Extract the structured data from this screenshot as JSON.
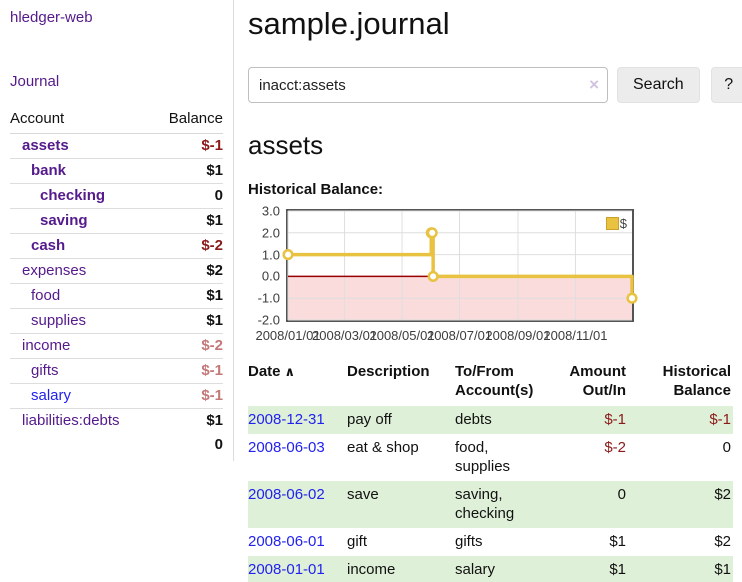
{
  "brand": "hledger-web",
  "nav": {
    "journal_label": "Journal"
  },
  "sidebar": {
    "header": {
      "account": "Account",
      "balance": "Balance"
    },
    "rows": [
      {
        "name": "assets",
        "depth": 1,
        "bold": true,
        "balance": "$-1",
        "neg": true,
        "unvisited": false
      },
      {
        "name": "bank",
        "depth": 2,
        "bold": true,
        "balance": "$1",
        "neg": false,
        "unvisited": false
      },
      {
        "name": "checking",
        "depth": 3,
        "bold": true,
        "balance": "0",
        "neg": false,
        "unvisited": false
      },
      {
        "name": "saving",
        "depth": 3,
        "bold": true,
        "balance": "$1",
        "neg": false,
        "unvisited": false
      },
      {
        "name": "cash",
        "depth": 2,
        "bold": true,
        "balance": "$-2",
        "neg": true,
        "unvisited": false
      },
      {
        "name": "expenses",
        "depth": 1,
        "bold": false,
        "balance": "$2",
        "neg": false,
        "unvisited": false
      },
      {
        "name": "food",
        "depth": 2,
        "bold": false,
        "balance": "$1",
        "neg": false,
        "unvisited": false
      },
      {
        "name": "supplies",
        "depth": 2,
        "bold": false,
        "balance": "$1",
        "neg": false,
        "unvisited": false
      },
      {
        "name": "income",
        "depth": 1,
        "bold": false,
        "balance": "$-2",
        "neg": true,
        "unvisited": false
      },
      {
        "name": "gifts",
        "depth": 2,
        "bold": false,
        "balance": "$-1",
        "neg": true,
        "unvisited": false
      },
      {
        "name": "salary",
        "depth": 2,
        "bold": false,
        "balance": "$-1",
        "neg": true,
        "unvisited": true
      },
      {
        "name": "liabilities:debts",
        "depth": 1,
        "bold": false,
        "balance": "$1",
        "neg": false,
        "unvisited": false
      }
    ],
    "total": "0"
  },
  "header": {
    "title": "sample.journal"
  },
  "search": {
    "value": "inacct:assets",
    "button_label": "Search",
    "help_label": "?"
  },
  "icons": {
    "clear": "×",
    "sort_asc": "∧"
  },
  "account_page": {
    "title": "assets",
    "chart_label": "Historical Balance:"
  },
  "chart_data": {
    "type": "line",
    "title": "Historical Balance",
    "style": "step",
    "series": [
      {
        "name": "$",
        "color": "#e8c240",
        "points": [
          {
            "date": "2008-01-01",
            "day": 0,
            "value": 1
          },
          {
            "date": "2008-06-01",
            "day": 152,
            "value": 2
          },
          {
            "date": "2008-06-02",
            "day": 153,
            "value": 2
          },
          {
            "date": "2008-06-03",
            "day": 154,
            "value": 0
          },
          {
            "date": "2008-12-31",
            "day": 365,
            "value": -1
          }
        ]
      }
    ],
    "x_ticks": [
      {
        "label": "2008/01/01",
        "day": 0
      },
      {
        "label": "2008/03/01",
        "day": 60
      },
      {
        "label": "2008/05/01",
        "day": 121
      },
      {
        "label": "2008/07/01",
        "day": 182
      },
      {
        "label": "2008/09/01",
        "day": 244
      },
      {
        "label": "2008/11/01",
        "day": 305
      }
    ],
    "y_ticks": [
      "3.0",
      "2.0",
      "1.0",
      "0.0",
      "-1.0",
      "-2.0"
    ],
    "ylim": [
      -2,
      3
    ],
    "xlim_days": [
      0,
      365
    ],
    "grid": true,
    "legend": {
      "label": "$",
      "position": "top-right"
    },
    "negative_region_color": "#fbdcdc",
    "zero_line_color": "#990000"
  },
  "register": {
    "columns": [
      {
        "label": "Date",
        "sorted_asc": true
      },
      {
        "label": "Description"
      },
      {
        "label": "To/From Account(s)"
      },
      {
        "label": "Amount Out/In",
        "align": "right"
      },
      {
        "label": "Historical Balance",
        "align": "right"
      }
    ],
    "rows": [
      {
        "date": "2008-12-31",
        "description": "pay off",
        "accounts": "debts",
        "amount": "$-1",
        "amount_neg": true,
        "balance": "$-1",
        "balance_neg": true,
        "green": true
      },
      {
        "date": "2008-06-03",
        "description": "eat & shop",
        "accounts": "food, supplies",
        "amount": "$-2",
        "amount_neg": true,
        "balance": "0",
        "balance_neg": false,
        "green": false
      },
      {
        "date": "2008-06-02",
        "description": "save",
        "accounts": "saving, checking",
        "amount": "0",
        "amount_neg": false,
        "balance": "$2",
        "balance_neg": false,
        "green": true
      },
      {
        "date": "2008-06-01",
        "description": "gift",
        "accounts": "gifts",
        "amount": "$1",
        "amount_neg": false,
        "balance": "$2",
        "balance_neg": false,
        "green": false
      },
      {
        "date": "2008-01-01",
        "description": "income",
        "accounts": "salary",
        "amount": "$1",
        "amount_neg": false,
        "balance": "$1",
        "balance_neg": false,
        "green": true
      }
    ]
  },
  "colors": {
    "link_visited_purple": "#551a8b",
    "link_blue": "#2222ee",
    "negative_red": "#8b1a1a",
    "negative_red_muted": "#c47878",
    "row_stripe_green": "#dff0d8",
    "chart_gold": "#e8c240",
    "chart_negative_bg": "#fbdcdc",
    "chart_zero_line": "#990000"
  }
}
